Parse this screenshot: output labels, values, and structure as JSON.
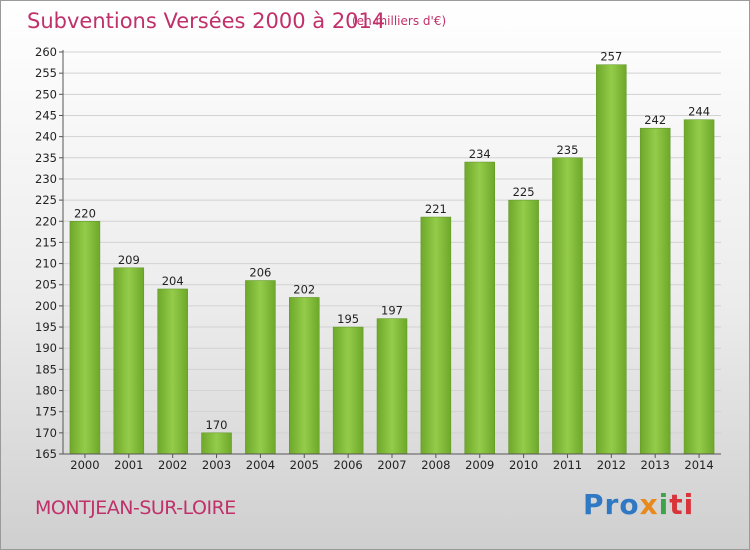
{
  "chart_data": {
    "type": "bar",
    "title": "Subventions Versées 2000 à 2014",
    "unit_note": "(en milliers d'€)",
    "categories": [
      "2000",
      "2001",
      "2002",
      "2003",
      "2004",
      "2005",
      "2006",
      "2007",
      "2008",
      "2009",
      "2010",
      "2011",
      "2012",
      "2013",
      "2014"
    ],
    "values": [
      220,
      209,
      204,
      170,
      206,
      202,
      195,
      197,
      221,
      234,
      225,
      235,
      257,
      242,
      244
    ],
    "ylim": [
      165,
      260
    ],
    "yticks": [
      165,
      170,
      175,
      180,
      185,
      190,
      195,
      200,
      205,
      210,
      215,
      220,
      225,
      230,
      235,
      240,
      245,
      250,
      255,
      260
    ],
    "grid": true,
    "bar_color": "#7ab52e",
    "title_color": "#c0306a"
  },
  "footer": {
    "city": "MONTJEAN-SUR-LOIRE",
    "logo": [
      "Pro",
      "x",
      "i",
      "ti"
    ]
  }
}
